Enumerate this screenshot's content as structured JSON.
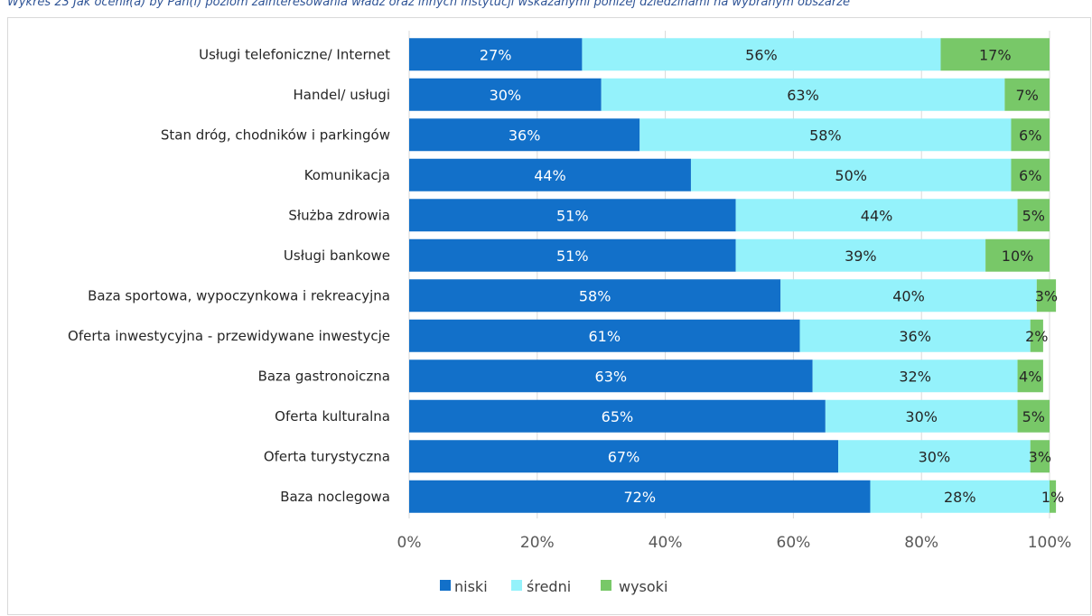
{
  "caption": "Wykres 23 Jak ocenił(a) by Pan(i) poziom zainteresowania władz oraz innych instytucji wskazanymi poniżej dziedzinami na wybranym obszarze",
  "colors": {
    "niski": "#1270c9",
    "sredni": "#94f2fb",
    "wysoki": "#78c868"
  },
  "chart_data": {
    "type": "bar",
    "orientation": "horizontal",
    "stacked": true,
    "title": "",
    "categories": [
      "Usługi telefoniczne/ Internet",
      "Handel/ usługi",
      "Stan dróg, chodników i parkingów",
      "Komunikacja",
      "Służba zdrowia",
      "Usługi bankowe",
      "Baza sportowa, wypoczynkowa i rekreacyjna",
      "Oferta inwestycyjna - przewidywane inwestycje",
      "Baza gastronoiczna",
      "Oferta kulturalna",
      "Oferta turystyczna",
      "Baza noclegowa"
    ],
    "series": [
      {
        "name": "niski",
        "values": [
          27,
          30,
          36,
          44,
          51,
          51,
          58,
          61,
          63,
          65,
          67,
          72
        ],
        "labels": [
          "27%",
          "30%",
          "36%",
          "44%",
          "51%",
          "51%",
          "58%",
          "61%",
          "63%",
          "65%",
          "67%",
          "72%"
        ]
      },
      {
        "name": "średni",
        "values": [
          56,
          63,
          58,
          50,
          44,
          39,
          40,
          36,
          32,
          30,
          30,
          28
        ],
        "labels": [
          "56%",
          "63%",
          "58%",
          "50%",
          "44%",
          "39%",
          "40%",
          "36%",
          "32%",
          "30%",
          "30%",
          "28%"
        ]
      },
      {
        "name": "wysoki",
        "values": [
          17,
          7,
          6,
          6,
          5,
          10,
          3,
          2,
          4,
          5,
          3,
          1
        ],
        "labels": [
          "17%",
          "7%",
          "6%",
          "6%",
          "5%",
          "10%",
          "3%",
          "2%",
          "4%",
          "5%",
          "3%",
          "1%"
        ]
      }
    ],
    "xlim": [
      0,
      100
    ],
    "xticks": [
      "0%",
      "20%",
      "40%",
      "60%",
      "80%",
      "100%"
    ],
    "legend": {
      "position": "bottom",
      "items": [
        "niski",
        "średni",
        "wysoki"
      ]
    },
    "grid": true
  }
}
